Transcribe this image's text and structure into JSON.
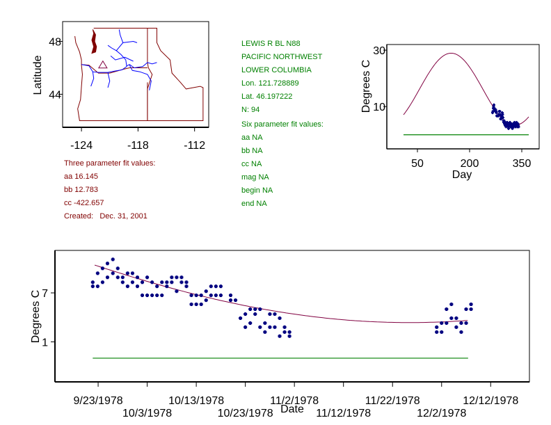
{
  "colors": {
    "curve": "#800040",
    "points": "#000080",
    "baseline": "#008000",
    "border": "#800000",
    "rivers": "#0000ff",
    "info_green": "#008000",
    "info_maroon": "#800000"
  },
  "station_info": {
    "name": "LEWIS R BL N88",
    "region": "PACIFIC NORTHWEST",
    "subregion": "LOWER COLUMBIA",
    "lon": "Lon. 121.728889",
    "lat": "Lat. 46.197222",
    "n": "N: 94"
  },
  "six_param": {
    "title": "Six parameter fit values:",
    "aa": "aa NA",
    "bb": "bb NA",
    "cc": "cc NA",
    "mag": "mag NA",
    "begin": "begin NA",
    "end": "end NA"
  },
  "three_param": {
    "title": "Three parameter fit values:",
    "aa": "aa 16.145",
    "bb": "bb 12.783",
    "cc": "cc -422.657",
    "created": "Created:   Dec. 31, 2001"
  },
  "chart_data": [
    {
      "type": "map",
      "title": "",
      "xlabel": "",
      "ylabel": "Latitude",
      "xticks": [
        "-124",
        "-118",
        "-112"
      ],
      "xtick_values": [
        -124,
        -118,
        -112
      ],
      "yticks": [
        "48",
        "44"
      ],
      "ytick_values": [
        48,
        44
      ],
      "xlim": [
        -126,
        -110.5
      ],
      "ylim": [
        41.5,
        49.5
      ],
      "station": {
        "lon": -121.728889,
        "lat": 46.197222,
        "marker": "triangle"
      }
    },
    {
      "type": "line",
      "title": "",
      "xlabel": "Day",
      "ylabel": "Degrees C",
      "xticks": [
        "50",
        "200",
        "350"
      ],
      "xtick_values": [
        50,
        200,
        350
      ],
      "yticks": [
        "30",
        "10"
      ],
      "ytick_values": [
        30,
        10
      ],
      "xlim": [
        -38,
        400
      ],
      "ylim": [
        -5,
        32
      ],
      "fit": {
        "aa": 16.145,
        "bb": 12.783,
        "peak_day": 147,
        "day_range": [
          10,
          370
        ]
      },
      "baseline": {
        "value": 0,
        "day_range": [
          10,
          370
        ]
      },
      "series": [
        {
          "name": "observations",
          "day": [
            266,
            267,
            268,
            269,
            270,
            271,
            272,
            273,
            274,
            275,
            276,
            277,
            278,
            279,
            280,
            281,
            282,
            283,
            284,
            285,
            286,
            287,
            288,
            289,
            290,
            291,
            292,
            293,
            294,
            295,
            296,
            297,
            298,
            299,
            300,
            301,
            302,
            303,
            304,
            305,
            306,
            307,
            308,
            309,
            310,
            311,
            312,
            313,
            314,
            315,
            316,
            317,
            318,
            319,
            320,
            321,
            322,
            323,
            324,
            325,
            326,
            327,
            328,
            329,
            330,
            331,
            332,
            333,
            334,
            335,
            336,
            337,
            338,
            339,
            340,
            341
          ],
          "temp": [
            7.8,
            8.3,
            9.4,
            10.0,
            10.6,
            9.4,
            8.9,
            8.9,
            8.3,
            8.9,
            8.3,
            7.8,
            6.7,
            6.7,
            6.7,
            6.7,
            6.7,
            6.7,
            7.2,
            8.3,
            8.3,
            8.3,
            7.2,
            5.6,
            5.6,
            6.1,
            6.7,
            6.7,
            7.8,
            7.2,
            6.1,
            5.0,
            4.4,
            5.0,
            3.9,
            3.9,
            3.3,
            4.4,
            3.9,
            2.8,
            3.3,
            3.9,
            4.4,
            3.3,
            3.3,
            2.8,
            2.2,
            2.8,
            3.3,
            3.9,
            4.4,
            3.3,
            2.8,
            3.3,
            3.9,
            3.3,
            2.8,
            2.2,
            3.3,
            3.9,
            3.3,
            2.8,
            3.9,
            4.4,
            3.9,
            3.3,
            2.8,
            3.3,
            3.9,
            4.4,
            3.3,
            2.8,
            3.3,
            3.9,
            3.3,
            2.8
          ]
        }
      ]
    },
    {
      "type": "scatter",
      "title": "",
      "xlabel": "Date",
      "ylabel": "Degrees C",
      "xticks": [
        "9/23/1978",
        "10/3/1978",
        "10/13/1978",
        "10/23/1978",
        "11/2/1978",
        "11/12/1978",
        "11/22/1978",
        "12/2/1978",
        "12/12/1978"
      ],
      "xtick_days": [
        0,
        10,
        20,
        30,
        40,
        50,
        60,
        70,
        80
      ],
      "yticks": [
        "7",
        "1"
      ],
      "ytick_values": [
        7,
        1
      ],
      "xlim": [
        -8.8,
        87.9
      ],
      "ylim": [
        -3.9,
        12.2
      ],
      "x_units": "days since 9/23/1978",
      "fit": {
        "aa": 16.145,
        "bb": 12.783,
        "peak_day": 147,
        "day_of_year_at_x0": 266,
        "day_range": [
          -0.7,
          75.4
        ]
      },
      "baseline": {
        "value": -1,
        "day_range": [
          -1.1,
          75.4
        ]
      },
      "series": [
        {
          "name": "observations",
          "points": [
            [
              -1.1,
              8.3
            ],
            [
              -1.1,
              7.8
            ],
            [
              -0.1,
              7.8
            ],
            [
              -0.1,
              9.4
            ],
            [
              0.9,
              8.3
            ],
            [
              0.9,
              10.0
            ],
            [
              1.9,
              8.9
            ],
            [
              1.9,
              10.6
            ],
            [
              3.0,
              9.4
            ],
            [
              3.0,
              11.1
            ],
            [
              4.0,
              10.0
            ],
            [
              4.0,
              8.9
            ],
            [
              5.0,
              8.9
            ],
            [
              5.0,
              8.3
            ],
            [
              6.0,
              9.4
            ],
            [
              6.0,
              7.8
            ],
            [
              7.0,
              9.4
            ],
            [
              7.0,
              8.3
            ],
            [
              8.0,
              8.9
            ],
            [
              8.0,
              7.8
            ],
            [
              9.0,
              8.3
            ],
            [
              9.0,
              6.7
            ],
            [
              10.0,
              8.9
            ],
            [
              10.0,
              6.7
            ],
            [
              11.0,
              8.3
            ],
            [
              11.0,
              6.7
            ],
            [
              12.0,
              7.8
            ],
            [
              12.0,
              6.7
            ],
            [
              13.0,
              8.3
            ],
            [
              13.0,
              6.7
            ],
            [
              14.0,
              7.8
            ],
            [
              14.0,
              8.3
            ],
            [
              15.0,
              8.3
            ],
            [
              15.0,
              8.9
            ],
            [
              16.0,
              8.9
            ],
            [
              16.0,
              7.2
            ],
            [
              17.0,
              8.9
            ],
            [
              17.0,
              8.3
            ],
            [
              18.0,
              8.3
            ],
            [
              18.0,
              7.8
            ],
            [
              19.0,
              6.7
            ],
            [
              19.0,
              5.6
            ],
            [
              20.0,
              6.7
            ],
            [
              20.0,
              5.6
            ],
            [
              21.0,
              6.7
            ],
            [
              21.0,
              5.6
            ],
            [
              22.0,
              7.2
            ],
            [
              22.0,
              6.1
            ],
            [
              23.0,
              7.8
            ],
            [
              23.0,
              6.7
            ],
            [
              24.0,
              7.8
            ],
            [
              24.0,
              6.7
            ],
            [
              25.0,
              7.8
            ],
            [
              25.0,
              6.7
            ],
            [
              27.0,
              6.7
            ],
            [
              27.0,
              6.1
            ],
            [
              28.0,
              6.1
            ],
            [
              29.0,
              3.9
            ],
            [
              30.0,
              4.4
            ],
            [
              30.0,
              2.8
            ],
            [
              31.0,
              5.0
            ],
            [
              31.0,
              3.3
            ],
            [
              32.0,
              5.0
            ],
            [
              32.0,
              4.4
            ],
            [
              33.0,
              5.0
            ],
            [
              33.0,
              2.8
            ],
            [
              34.0,
              3.3
            ],
            [
              34.0,
              2.2
            ],
            [
              35.0,
              4.4
            ],
            [
              35.0,
              2.8
            ],
            [
              36.0,
              4.4
            ],
            [
              36.0,
              2.8
            ],
            [
              37.0,
              3.9
            ],
            [
              37.0,
              1.7
            ],
            [
              38.0,
              2.8
            ],
            [
              38.0,
              2.2
            ],
            [
              39.0,
              2.2
            ],
            [
              39.0,
              1.7
            ],
            [
              69.0,
              2.8
            ],
            [
              69.0,
              2.2
            ],
            [
              70.0,
              3.3
            ],
            [
              70.0,
              2.2
            ],
            [
              71.0,
              5.0
            ],
            [
              71.0,
              3.3
            ],
            [
              72.0,
              5.6
            ],
            [
              72.0,
              3.9
            ],
            [
              73.0,
              3.9
            ],
            [
              73.0,
              2.8
            ],
            [
              74.0,
              3.3
            ],
            [
              74.0,
              2.2
            ],
            [
              75.0,
              5.0
            ],
            [
              75.0,
              3.3
            ],
            [
              76.0,
              5.6
            ],
            [
              76.0,
              5.0
            ]
          ]
        }
      ]
    }
  ]
}
